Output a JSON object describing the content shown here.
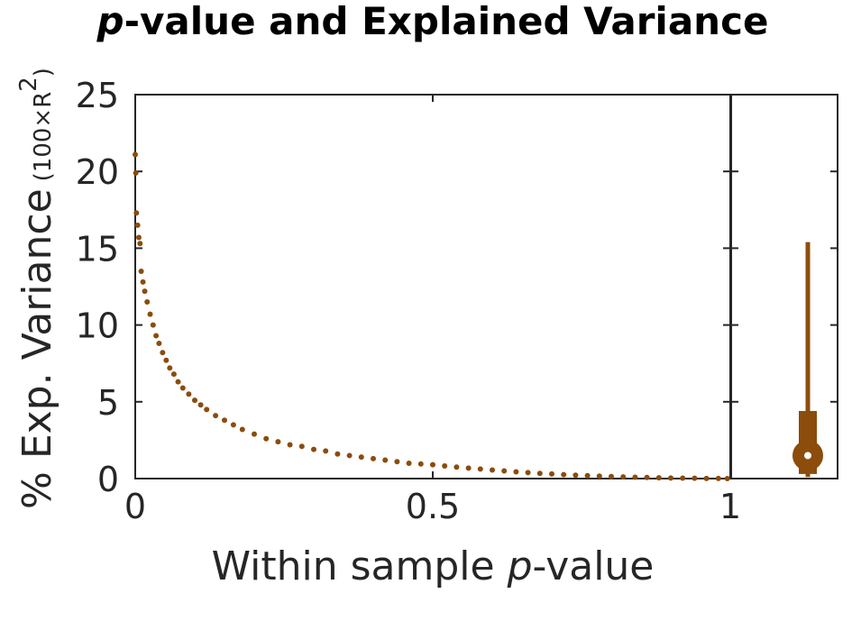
{
  "chart_data": {
    "type": "scatter",
    "title_main": "-value and Explained Variance",
    "title_italic": "p",
    "xlabel_prefix": "Within sample ",
    "xlabel_italic": "p",
    "xlabel_suffix": "-value",
    "ylabel_main": "% Exp. Variance",
    "ylabel_sub": "(100×R",
    "ylabel_sup": "2",
    "ylabel_close": ")",
    "xlim": [
      0,
      1
    ],
    "ylim": [
      0,
      25
    ],
    "xticks": [
      0,
      0.5,
      1
    ],
    "xtick_labels": [
      "0",
      "0.5",
      "1"
    ],
    "yticks": [
      0,
      5,
      10,
      15,
      20,
      25
    ],
    "ytick_labels": [
      "0",
      "5",
      "10",
      "15",
      "20",
      "25"
    ],
    "grid": false,
    "marker_color": "#8B4C0C",
    "series": [
      {
        "x": [
          0.0,
          0.001,
          0.002,
          0.004,
          0.006,
          0.008,
          0.01,
          0.013,
          0.016,
          0.02,
          0.025,
          0.03,
          0.035,
          0.04,
          0.046,
          0.052,
          0.058,
          0.065,
          0.072,
          0.08,
          0.09,
          0.1,
          0.11,
          0.12,
          0.135,
          0.15,
          0.165,
          0.18,
          0.2,
          0.22,
          0.24,
          0.26,
          0.28,
          0.3,
          0.32,
          0.34,
          0.36,
          0.38,
          0.4,
          0.42,
          0.44,
          0.46,
          0.48,
          0.5,
          0.52,
          0.54,
          0.56,
          0.58,
          0.6,
          0.62,
          0.64,
          0.66,
          0.68,
          0.7,
          0.72,
          0.74,
          0.76,
          0.78,
          0.8,
          0.82,
          0.84,
          0.86,
          0.88,
          0.9,
          0.92,
          0.94,
          0.96,
          0.98,
          0.995
        ],
        "y": [
          21.1,
          19.9,
          17.3,
          16.5,
          15.7,
          15.3,
          13.5,
          12.8,
          12.2,
          11.5,
          10.7,
          10.0,
          9.3,
          8.8,
          8.2,
          7.7,
          7.2,
          6.8,
          6.3,
          5.9,
          5.5,
          5.1,
          4.8,
          4.5,
          4.1,
          3.8,
          3.5,
          3.2,
          2.9,
          2.6,
          2.4,
          2.2,
          2.1,
          1.9,
          1.8,
          1.6,
          1.5,
          1.4,
          1.3,
          1.2,
          1.1,
          1.0,
          0.95,
          0.9,
          0.82,
          0.75,
          0.68,
          0.62,
          0.56,
          0.5,
          0.44,
          0.39,
          0.34,
          0.3,
          0.26,
          0.22,
          0.19,
          0.16,
          0.13,
          0.11,
          0.09,
          0.07,
          0.05,
          0.04,
          0.03,
          0.02,
          0.01,
          0.01,
          0.0
        ]
      }
    ],
    "boxplot": {
      "whisker_low": 0.1,
      "q1": 0.3,
      "median": 1.5,
      "q3": 4.4,
      "whisker_high": 15.4
    }
  }
}
